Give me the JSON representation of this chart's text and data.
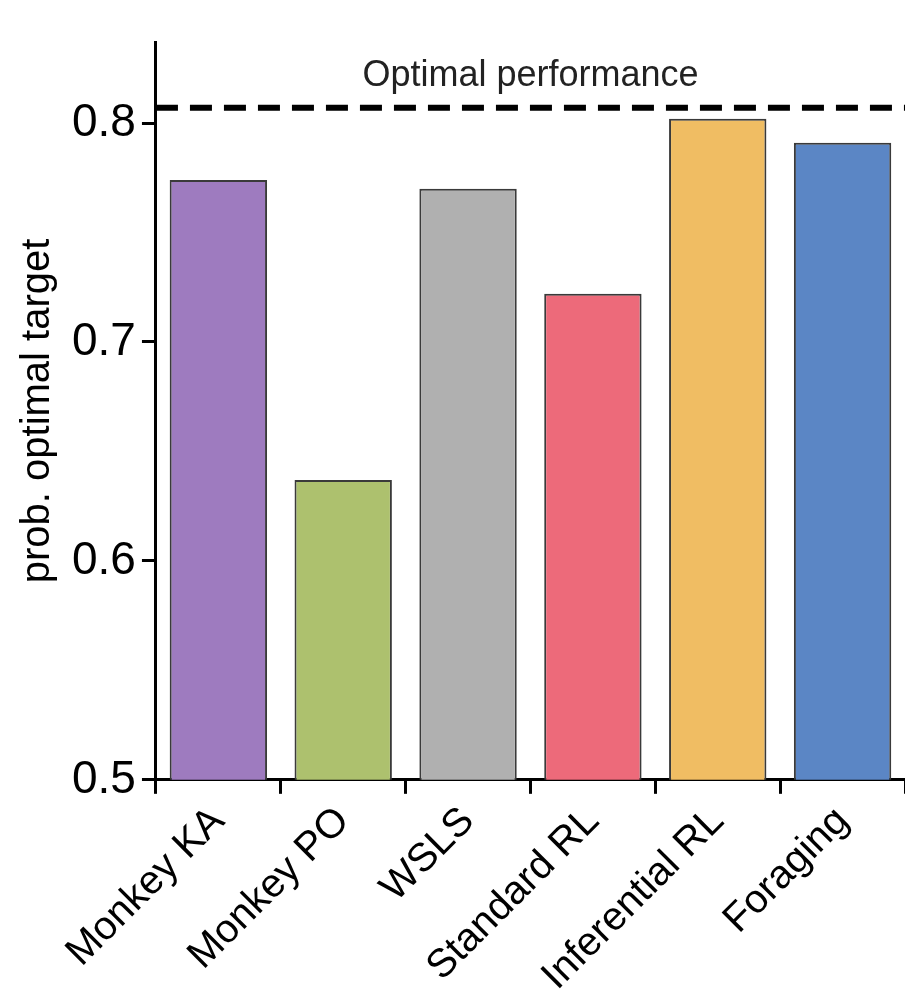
{
  "chart_data": {
    "type": "bar",
    "ylabel": "prob. optimal target",
    "categories": [
      "Monkey KA",
      "Monkey PO",
      "WSLS",
      "Standard RL",
      "Inferential RL",
      "Foraging"
    ],
    "values": [
      0.774,
      0.637,
      0.77,
      0.722,
      0.802,
      0.791
    ],
    "colors": [
      "#9e7bbf",
      "#adc16e",
      "#b0b0b0",
      "#ed6a7a",
      "#f0bd63",
      "#5b86c5"
    ],
    "ylim": [
      0.5,
      0.837
    ],
    "yticks": [
      0.5,
      0.6,
      0.7,
      0.8
    ],
    "ref_lines": [
      {
        "axis": "y",
        "value": 0.807,
        "label": "Optimal performance",
        "color": "#000000",
        "line_style": "dashed"
      }
    ],
    "grid": false,
    "legend": false
  }
}
